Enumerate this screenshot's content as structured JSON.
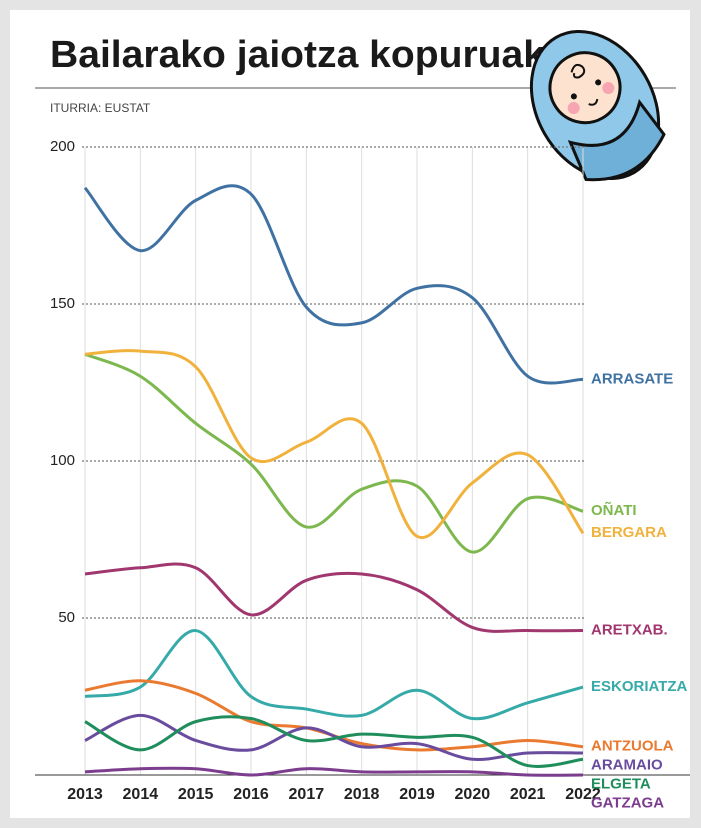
{
  "chart_data": {
    "type": "line",
    "title": "Bailarako jaiotza kopuruak",
    "subtitle": "ITURRIA: EUSTAT",
    "x": [
      2013,
      2014,
      2015,
      2016,
      2017,
      2018,
      2019,
      2020,
      2021,
      2022
    ],
    "xlim": [
      2013,
      2022
    ],
    "ylim": [
      0,
      200
    ],
    "yticks": [
      50,
      100,
      150,
      200
    ],
    "grid": true,
    "series": [
      {
        "name": "ARRASATE",
        "color": "#3f72a3",
        "values": [
          187,
          167,
          183,
          185,
          149,
          144,
          155,
          152,
          127,
          126
        ]
      },
      {
        "name": "OÑATI",
        "color": "#7db84f",
        "values": [
          134,
          127,
          112,
          99,
          79,
          91,
          92,
          71,
          88,
          84
        ]
      },
      {
        "name": "BERGARA",
        "color": "#f0b23c",
        "values": [
          134,
          135,
          130,
          101,
          106,
          112,
          76,
          93,
          102,
          77
        ]
      },
      {
        "name": "ARETXAB.",
        "color": "#a0376f",
        "values": [
          64,
          66,
          66,
          51,
          62,
          64,
          59,
          47,
          46,
          46
        ]
      },
      {
        "name": "ESKORIATZA",
        "color": "#35aaa8",
        "values": [
          25,
          28,
          46,
          25,
          21,
          19,
          27,
          18,
          23,
          28
        ]
      },
      {
        "name": "ANTZUOLA",
        "color": "#e97a30",
        "values": [
          27,
          30,
          26,
          17,
          15,
          10,
          8,
          9,
          11,
          9
        ]
      },
      {
        "name": "ARAMAIO",
        "color": "#6a4c9e",
        "values": [
          11,
          19,
          11,
          8,
          15,
          9,
          10,
          5,
          7,
          7
        ]
      },
      {
        "name": "ELGETA",
        "color": "#1f8e5c",
        "values": [
          17,
          8,
          17,
          18,
          11,
          13,
          12,
          12,
          3,
          5
        ]
      },
      {
        "name": "GATZAGA",
        "color": "#7d3d8f",
        "values": [
          1,
          2,
          2,
          0,
          2,
          1,
          1,
          1,
          0,
          0
        ]
      }
    ]
  }
}
